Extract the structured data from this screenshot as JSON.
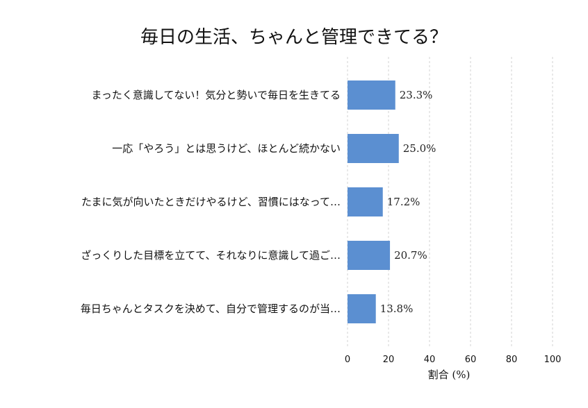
{
  "chart_data": {
    "type": "bar",
    "orientation": "horizontal",
    "title": "毎日の生活、ちゃんと管理できてる？",
    "xlabel": "割合 (%)",
    "ylabel": "",
    "xlim": [
      0,
      100
    ],
    "xticks": [
      0,
      20,
      40,
      60,
      80,
      100
    ],
    "grid": true,
    "bar_color": "#5b8fd1",
    "categories": [
      "まったく意識してない！気分と勢いで毎日を生きてる",
      "一応「やろう」とは思うけど、ほとんど続かない",
      "たまに気が向いたときだけやるけど、習慣にはなって…",
      "ざっくりした目標を立てて、それなりに意識して過ご…",
      "毎日ちゃんとタスクを決めて、自分で管理するのが当…"
    ],
    "values": [
      23.3,
      25.0,
      17.2,
      20.7,
      13.8
    ],
    "value_labels": [
      "23.3%",
      "25.0%",
      "17.2%",
      "20.7%",
      "13.8%"
    ]
  }
}
